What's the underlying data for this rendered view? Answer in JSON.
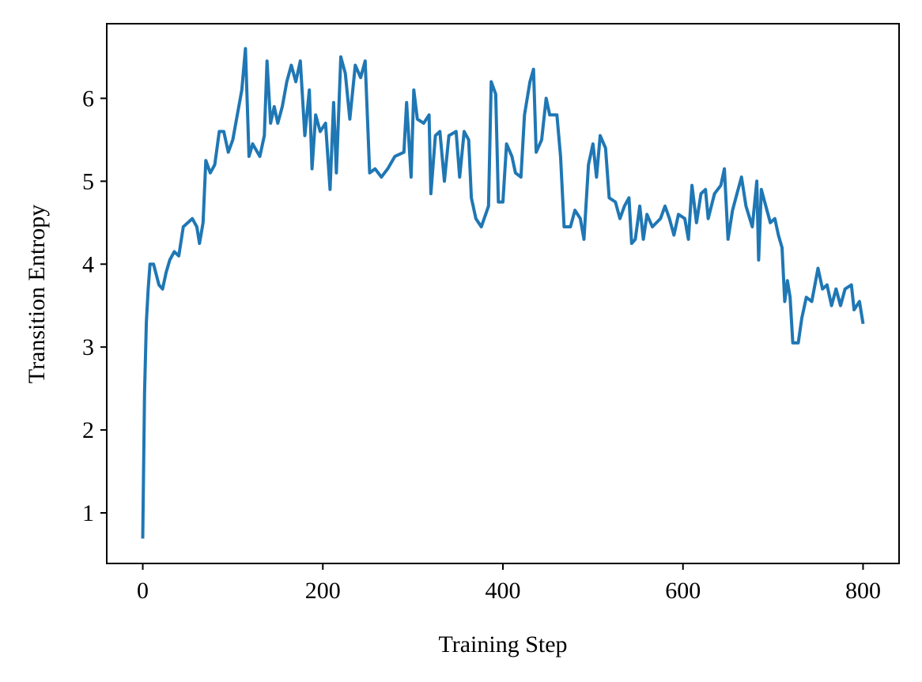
{
  "chart_data": {
    "type": "line",
    "x_label": "Training Step",
    "y_label": "Transition Entropy",
    "xlim": [
      -40,
      840
    ],
    "ylim": [
      0.39,
      6.9
    ],
    "xticks": [
      0,
      200,
      400,
      600,
      800
    ],
    "yticks": [
      1,
      2,
      3,
      4,
      5,
      6
    ],
    "x": [
      0,
      2,
      4,
      6,
      8,
      12,
      18,
      22,
      26,
      30,
      35,
      40,
      45,
      50,
      55,
      60,
      63,
      67,
      70,
      75,
      80,
      85,
      90,
      95,
      100,
      105,
      110,
      114,
      118,
      122,
      130,
      135,
      138,
      142,
      146,
      150,
      155,
      160,
      165,
      170,
      175,
      180,
      185,
      188,
      192,
      197,
      203,
      208,
      212,
      215,
      220,
      225,
      230,
      236,
      242,
      247,
      252,
      258,
      265,
      272,
      280,
      290,
      293,
      298,
      301,
      305,
      312,
      318,
      320,
      325,
      330,
      335,
      340,
      348,
      352,
      357,
      362,
      365,
      370,
      376,
      384,
      387,
      392,
      395,
      400,
      404,
      410,
      414,
      420,
      424,
      430,
      434,
      437,
      443,
      448,
      452,
      460,
      464,
      468,
      475,
      480,
      486,
      490,
      495,
      500,
      504,
      508,
      514,
      518,
      525,
      530,
      535,
      540,
      543,
      547,
      552,
      556,
      560,
      566,
      575,
      580,
      585,
      590,
      595,
      602,
      606,
      610,
      615,
      620,
      625,
      628,
      635,
      642,
      646,
      650,
      655,
      660,
      665,
      670,
      677,
      682,
      684,
      687,
      692,
      697,
      702,
      706,
      710,
      713,
      716,
      719,
      722,
      728,
      732,
      737,
      743,
      750,
      755,
      760,
      765,
      770,
      775,
      780,
      787,
      790,
      796,
      800
    ],
    "series": [
      {
        "name": "Transition Entropy",
        "color": "#1f77b4",
        "values": [
          0.69,
          2.45,
          3.3,
          3.7,
          4.0,
          4.0,
          3.75,
          3.7,
          3.9,
          4.05,
          4.15,
          4.1,
          4.45,
          4.5,
          4.55,
          4.45,
          4.25,
          4.5,
          5.25,
          5.1,
          5.2,
          5.6,
          5.6,
          5.35,
          5.5,
          5.8,
          6.1,
          6.6,
          5.3,
          5.45,
          5.3,
          5.55,
          6.45,
          5.7,
          5.9,
          5.7,
          5.9,
          6.2,
          6.4,
          6.2,
          6.45,
          5.55,
          6.1,
          5.15,
          5.8,
          5.6,
          5.7,
          4.9,
          5.95,
          5.1,
          6.5,
          6.3,
          5.75,
          6.4,
          6.25,
          6.45,
          5.1,
          5.15,
          5.05,
          5.15,
          5.3,
          5.35,
          5.95,
          5.05,
          6.1,
          5.75,
          5.7,
          5.8,
          4.85,
          5.55,
          5.6,
          5.0,
          5.55,
          5.6,
          5.05,
          5.6,
          5.5,
          4.8,
          4.55,
          4.45,
          4.7,
          6.2,
          6.05,
          4.75,
          4.75,
          5.45,
          5.3,
          5.1,
          5.05,
          5.8,
          6.2,
          6.35,
          5.35,
          5.5,
          6.0,
          5.8,
          5.8,
          5.3,
          4.45,
          4.45,
          4.65,
          4.55,
          4.3,
          5.2,
          5.45,
          5.05,
          5.55,
          5.4,
          4.8,
          4.75,
          4.55,
          4.7,
          4.8,
          4.25,
          4.3,
          4.7,
          4.3,
          4.6,
          4.45,
          4.55,
          4.7,
          4.55,
          4.35,
          4.6,
          4.55,
          4.3,
          4.95,
          4.5,
          4.85,
          4.9,
          4.55,
          4.85,
          4.95,
          5.15,
          4.3,
          4.65,
          4.85,
          5.05,
          4.7,
          4.45,
          5.0,
          4.05,
          4.9,
          4.7,
          4.5,
          4.55,
          4.35,
          4.2,
          3.55,
          3.8,
          3.6,
          3.05,
          3.05,
          3.35,
          3.6,
          3.55,
          3.95,
          3.7,
          3.75,
          3.5,
          3.7,
          3.5,
          3.7,
          3.75,
          3.45,
          3.55,
          3.28
        ]
      }
    ]
  }
}
